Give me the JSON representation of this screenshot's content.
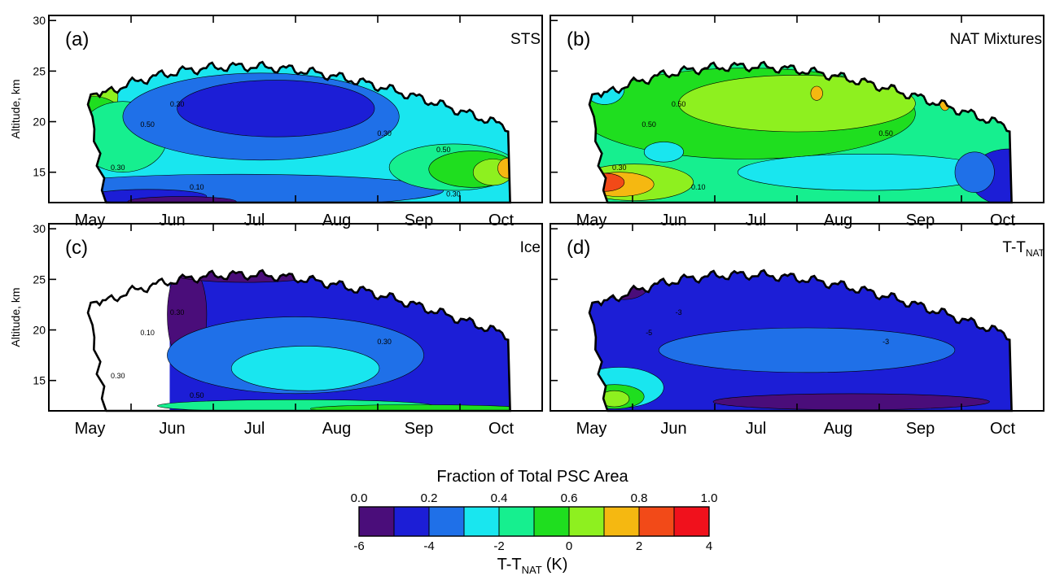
{
  "colors": {
    "levels": [
      "#4a0d7a",
      "#1c1ed6",
      "#1f70e8",
      "#19e6ef",
      "#16ef8f",
      "#1fde1f",
      "#8ef01f",
      "#f5b811",
      "#f24a18",
      "#f0111c"
    ],
    "frame": "#000000"
  },
  "chart_data": [
    {
      "type": "heatmap",
      "id": "a",
      "letter": "(a)",
      "title": "STS",
      "ylabel": "Altitude, km",
      "ylim": [
        12,
        30.5
      ],
      "yticks": [
        "15",
        "20",
        "25",
        "30"
      ],
      "months": [
        "May",
        "Jun",
        "Jul",
        "Aug",
        "Sep",
        "Oct"
      ],
      "contour_labels": [
        "0.50",
        "0.30",
        "0.30",
        "0.30",
        "0.10",
        "0.50",
        "0.30"
      ],
      "background_level": 3,
      "blobs": [
        {
          "level": 6,
          "cx": 0.08,
          "cy": 22.5,
          "rx": 0.06,
          "ry": 3.0
        },
        {
          "level": 7,
          "cx": 0.065,
          "cy": 24.3,
          "rx": 0.02,
          "ry": 0.9
        },
        {
          "level": 5,
          "cx": 0.09,
          "cy": 19.5,
          "rx": 0.07,
          "ry": 3.0
        },
        {
          "level": 4,
          "cx": 0.15,
          "cy": 18.5,
          "rx": 0.09,
          "ry": 3.5
        },
        {
          "level": 2,
          "cx": 0.43,
          "cy": 20.5,
          "rx": 0.28,
          "ry": 4.3
        },
        {
          "level": 1,
          "cx": 0.46,
          "cy": 21.3,
          "rx": 0.2,
          "ry": 2.8
        },
        {
          "level": 2,
          "cx": 0.38,
          "cy": 13.2,
          "rx": 0.42,
          "ry": 1.6
        },
        {
          "level": 1,
          "cx": 0.2,
          "cy": 12.6,
          "rx": 0.12,
          "ry": 0.7
        },
        {
          "level": 0,
          "cx": 0.27,
          "cy": 12.1,
          "rx": 0.11,
          "ry": 0.5
        },
        {
          "level": 4,
          "cx": 0.82,
          "cy": 15.5,
          "rx": 0.13,
          "ry": 2.3
        },
        {
          "level": 5,
          "cx": 0.86,
          "cy": 15.3,
          "rx": 0.09,
          "ry": 1.8
        },
        {
          "level": 6,
          "cx": 0.9,
          "cy": 15.0,
          "rx": 0.04,
          "ry": 1.3
        },
        {
          "level": 7,
          "cx": 0.93,
          "cy": 15.4,
          "rx": 0.02,
          "ry": 1.0
        },
        {
          "level": 8,
          "cx": 0.94,
          "cy": 16.0,
          "rx": 0.008,
          "ry": 0.4
        }
      ]
    },
    {
      "type": "heatmap",
      "id": "b",
      "letter": "(b)",
      "title": "NAT Mixtures",
      "ylabel": "",
      "ylim": [
        12,
        30.5
      ],
      "yticks": [
        "15",
        "20",
        "25",
        "30"
      ],
      "months": [
        "May",
        "Jun",
        "Jul",
        "Aug",
        "Sep",
        "Oct"
      ],
      "contour_labels": [
        "0.50",
        "0.50",
        "0.50",
        "0.30",
        "0.10"
      ],
      "background_level": 4,
      "blobs": [
        {
          "level": 5,
          "cx": 0.4,
          "cy": 20.8,
          "rx": 0.34,
          "ry": 4.5
        },
        {
          "level": 6,
          "cx": 0.5,
          "cy": 21.8,
          "rx": 0.24,
          "ry": 2.8
        },
        {
          "level": 7,
          "cx": 0.54,
          "cy": 22.8,
          "rx": 0.012,
          "ry": 0.7
        },
        {
          "level": 7,
          "cx": 0.8,
          "cy": 22.2,
          "rx": 0.012,
          "ry": 1.1
        },
        {
          "level": 3,
          "cx": 0.11,
          "cy": 23.2,
          "rx": 0.04,
          "ry": 1.5
        },
        {
          "level": 3,
          "cx": 0.64,
          "cy": 15.0,
          "rx": 0.26,
          "ry": 1.8
        },
        {
          "level": 3,
          "cx": 0.23,
          "cy": 17.0,
          "rx": 0.04,
          "ry": 1.0
        },
        {
          "level": 1,
          "cx": 0.93,
          "cy": 14.5,
          "rx": 0.08,
          "ry": 2.8
        },
        {
          "level": 2,
          "cx": 0.86,
          "cy": 15.0,
          "rx": 0.04,
          "ry": 2.0
        },
        {
          "level": 6,
          "cx": 0.17,
          "cy": 14.0,
          "rx": 0.12,
          "ry": 1.8
        },
        {
          "level": 7,
          "cx": 0.14,
          "cy": 13.8,
          "rx": 0.07,
          "ry": 1.2
        },
        {
          "level": 8,
          "cx": 0.11,
          "cy": 14.0,
          "rx": 0.04,
          "ry": 0.9
        }
      ]
    },
    {
      "type": "heatmap",
      "id": "c",
      "letter": "(c)",
      "title": "Ice",
      "ylabel": "Altitude, km",
      "ylim": [
        12,
        30.5
      ],
      "yticks": [
        "15",
        "20",
        "25",
        "30"
      ],
      "months": [
        "May",
        "Jun",
        "Jul",
        "Aug",
        "Sep",
        "Oct"
      ],
      "contour_labels": [
        "0.10",
        "0.30",
        "0.30",
        "0.30",
        "0.50"
      ],
      "background_level": 1,
      "blank_until": 0.245,
      "blobs": [
        {
          "level": 0,
          "cx": 0.28,
          "cy": 21.5,
          "rx": 0.04,
          "ry": 5.0
        },
        {
          "level": 0,
          "cx": 0.4,
          "cy": 25.7,
          "rx": 0.16,
          "ry": 1.0
        },
        {
          "level": 2,
          "cx": 0.5,
          "cy": 17.5,
          "rx": 0.26,
          "ry": 3.8
        },
        {
          "level": 3,
          "cx": 0.52,
          "cy": 16.2,
          "rx": 0.15,
          "ry": 2.2
        },
        {
          "level": 4,
          "cx": 0.5,
          "cy": 12.5,
          "rx": 0.28,
          "ry": 0.6
        },
        {
          "level": 5,
          "cx": 0.75,
          "cy": 12.2,
          "rx": 0.22,
          "ry": 0.4
        }
      ]
    },
    {
      "type": "heatmap",
      "id": "d",
      "letter": "(d)",
      "title": "T-T",
      "title_sub": "NAT",
      "ylabel": "",
      "ylim": [
        12,
        30.5
      ],
      "yticks": [
        "15",
        "20",
        "25",
        "30"
      ],
      "months": [
        "May",
        "Jun",
        "Jul",
        "Aug",
        "Sep",
        "Oct"
      ],
      "contour_labels": [
        "-5",
        "-3",
        "-3"
      ],
      "background_level": 1,
      "blobs": [
        {
          "level": 2,
          "cx": 0.52,
          "cy": 18.0,
          "rx": 0.3,
          "ry": 2.2
        },
        {
          "level": 0,
          "cx": 0.15,
          "cy": 24.5,
          "rx": 0.05,
          "ry": 1.5
        },
        {
          "level": 0,
          "cx": 0.61,
          "cy": 12.9,
          "rx": 0.28,
          "ry": 0.8
        },
        {
          "level": 3,
          "cx": 0.14,
          "cy": 14.3,
          "rx": 0.09,
          "ry": 2.0
        },
        {
          "level": 5,
          "cx": 0.13,
          "cy": 13.4,
          "rx": 0.06,
          "ry": 1.2
        },
        {
          "level": 6,
          "cx": 0.13,
          "cy": 13.2,
          "rx": 0.03,
          "ry": 0.8
        }
      ]
    }
  ],
  "colorbar": {
    "title": "Fraction of Total PSC Area",
    "top_ticks": [
      "0.0",
      "0.2",
      "0.4",
      "0.6",
      "0.8",
      "1.0"
    ],
    "bottom_ticks": [
      "-6",
      "-4",
      "-2",
      "0",
      "2",
      "4"
    ],
    "bottom_title": "T-T",
    "bottom_title_sub": "NAT",
    "bottom_title_unit": "(K)"
  }
}
